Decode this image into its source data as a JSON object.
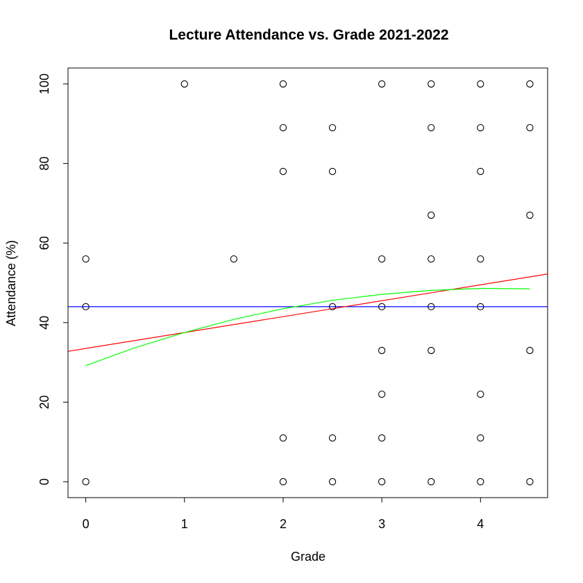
{
  "chart_data": {
    "type": "scatter",
    "title": "Lecture Attendance vs. Grade 2021-2022",
    "xlabel": "Grade",
    "ylabel": "Attendance (%)",
    "xlim": [
      -0.18,
      4.68
    ],
    "ylim": [
      -4,
      104
    ],
    "xticks": [
      0,
      1,
      2,
      3,
      4
    ],
    "yticks": [
      0,
      20,
      40,
      60,
      80,
      100
    ],
    "grid": false,
    "points": [
      {
        "x": 0,
        "y": 56
      },
      {
        "x": 0,
        "y": 44
      },
      {
        "x": 0,
        "y": 0
      },
      {
        "x": 1,
        "y": 100
      },
      {
        "x": 1.5,
        "y": 56
      },
      {
        "x": 2,
        "y": 100
      },
      {
        "x": 2,
        "y": 89
      },
      {
        "x": 2,
        "y": 78
      },
      {
        "x": 2,
        "y": 11
      },
      {
        "x": 2,
        "y": 0
      },
      {
        "x": 2.5,
        "y": 89
      },
      {
        "x": 2.5,
        "y": 78
      },
      {
        "x": 2.5,
        "y": 44
      },
      {
        "x": 2.5,
        "y": 11
      },
      {
        "x": 2.5,
        "y": 0
      },
      {
        "x": 3,
        "y": 100
      },
      {
        "x": 3,
        "y": 56
      },
      {
        "x": 3,
        "y": 44
      },
      {
        "x": 3,
        "y": 33
      },
      {
        "x": 3,
        "y": 22
      },
      {
        "x": 3,
        "y": 11
      },
      {
        "x": 3,
        "y": 0
      },
      {
        "x": 3.5,
        "y": 100
      },
      {
        "x": 3.5,
        "y": 89
      },
      {
        "x": 3.5,
        "y": 67
      },
      {
        "x": 3.5,
        "y": 56
      },
      {
        "x": 3.5,
        "y": 44
      },
      {
        "x": 3.5,
        "y": 33
      },
      {
        "x": 3.5,
        "y": 0
      },
      {
        "x": 4,
        "y": 100
      },
      {
        "x": 4,
        "y": 89
      },
      {
        "x": 4,
        "y": 78
      },
      {
        "x": 4,
        "y": 56
      },
      {
        "x": 4,
        "y": 44
      },
      {
        "x": 4,
        "y": 22
      },
      {
        "x": 4,
        "y": 11
      },
      {
        "x": 4,
        "y": 0
      },
      {
        "x": 4.5,
        "y": 100
      },
      {
        "x": 4.5,
        "y": 89
      },
      {
        "x": 4.5,
        "y": 67
      },
      {
        "x": 4.5,
        "y": 33
      },
      {
        "x": 4.5,
        "y": 0
      }
    ],
    "lines": [
      {
        "kind": "horizontal",
        "y": 44,
        "color": "#0000ff"
      },
      {
        "kind": "linear-fit",
        "intercept": 33.5,
        "slope": 4.0,
        "color": "#ff0000"
      },
      {
        "kind": "smooth",
        "color": "#00ff00",
        "x": [
          0,
          0.5,
          1,
          1.5,
          2,
          2.5,
          3,
          3.5,
          4,
          4.5
        ],
        "y": [
          29.2,
          33.7,
          37.5,
          40.8,
          43.5,
          45.6,
          47.1,
          48.1,
          48.6,
          48.5
        ]
      }
    ]
  }
}
